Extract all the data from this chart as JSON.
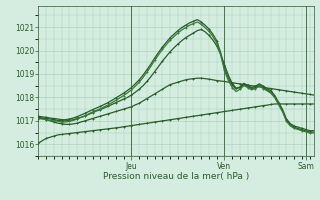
{
  "background_color": "#d4ede0",
  "grid_color": "#a8ccb8",
  "line_color_dark": "#2a5c2a",
  "line_color_mid": "#3a7a3a",
  "xlabel": "Pression niveau de la mer( hPa )",
  "day_labels": [
    "Jeu",
    "Ven",
    "Sam"
  ],
  "ylim": [
    1015.5,
    1021.9
  ],
  "yticks": [
    1016,
    1017,
    1018,
    1019,
    1020,
    1021
  ],
  "figsize": [
    3.2,
    2.0
  ],
  "dpi": 100,
  "series": {
    "s1_x": [
      0,
      1,
      2,
      3,
      4,
      5,
      6,
      7,
      8,
      9,
      10,
      11,
      12,
      13,
      14,
      15,
      16,
      17,
      18,
      19,
      20,
      21,
      22,
      23,
      24,
      25,
      26,
      27,
      28,
      29,
      30,
      31,
      32,
      33,
      34,
      35,
      36,
      37,
      38,
      39,
      40,
      41,
      42,
      43,
      44,
      45,
      46,
      47,
      48,
      49,
      50,
      51,
      52,
      53,
      54,
      55,
      56,
      57,
      58,
      59,
      60,
      61,
      62,
      63,
      64,
      65,
      66,
      67,
      68,
      69,
      70,
      71
    ],
    "s1_y": [
      1016.05,
      1016.15,
      1016.25,
      1016.3,
      1016.35,
      1016.4,
      1016.42,
      1016.44,
      1016.46,
      1016.48,
      1016.5,
      1016.52,
      1016.54,
      1016.56,
      1016.58,
      1016.6,
      1016.62,
      1016.64,
      1016.66,
      1016.68,
      1016.7,
      1016.72,
      1016.75,
      1016.77,
      1016.8,
      1016.82,
      1016.85,
      1016.87,
      1016.9,
      1016.92,
      1016.95,
      1016.97,
      1017.0,
      1017.02,
      1017.05,
      1017.07,
      1017.1,
      1017.12,
      1017.15,
      1017.17,
      1017.2,
      1017.22,
      1017.25,
      1017.27,
      1017.3,
      1017.32,
      1017.35,
      1017.37,
      1017.4,
      1017.42,
      1017.45,
      1017.47,
      1017.5,
      1017.52,
      1017.55,
      1017.57,
      1017.6,
      1017.62,
      1017.65,
      1017.67,
      1017.7,
      1017.72,
      1017.72,
      1017.72,
      1017.72,
      1017.72,
      1017.72,
      1017.72,
      1017.72,
      1017.72,
      1017.72,
      1017.72
    ],
    "s2_x": [
      0,
      1,
      2,
      3,
      4,
      5,
      6,
      7,
      8,
      9,
      10,
      11,
      12,
      13,
      14,
      15,
      16,
      17,
      18,
      19,
      20,
      21,
      22,
      23,
      24,
      25,
      26,
      27,
      28,
      29,
      30,
      31,
      32,
      33,
      34,
      35,
      36,
      37,
      38,
      39,
      40,
      41,
      42,
      43,
      44,
      45,
      46,
      47,
      48,
      49,
      50,
      51,
      52,
      53,
      54,
      55,
      56,
      57,
      58,
      59,
      60,
      61,
      62,
      63,
      64,
      65,
      66,
      67,
      68,
      69,
      70,
      71
    ],
    "s2_y": [
      1017.1,
      1017.1,
      1017.05,
      1017.0,
      1016.95,
      1016.9,
      1016.88,
      1016.85,
      1016.85,
      1016.87,
      1016.9,
      1016.95,
      1017.0,
      1017.05,
      1017.1,
      1017.15,
      1017.2,
      1017.25,
      1017.3,
      1017.35,
      1017.4,
      1017.45,
      1017.5,
      1017.55,
      1017.6,
      1017.68,
      1017.75,
      1017.85,
      1017.95,
      1018.05,
      1018.15,
      1018.25,
      1018.35,
      1018.45,
      1018.55,
      1018.6,
      1018.65,
      1018.7,
      1018.75,
      1018.78,
      1018.8,
      1018.82,
      1018.82,
      1018.8,
      1018.78,
      1018.75,
      1018.72,
      1018.7,
      1018.68,
      1018.65,
      1018.63,
      1018.6,
      1018.58,
      1018.55,
      1018.52,
      1018.5,
      1018.48,
      1018.45,
      1018.43,
      1018.4,
      1018.38,
      1018.35,
      1018.33,
      1018.3,
      1018.28,
      1018.25,
      1018.23,
      1018.2,
      1018.18,
      1018.15,
      1018.13,
      1018.1
    ],
    "s3_x": [
      0,
      1,
      2,
      3,
      4,
      5,
      6,
      7,
      8,
      9,
      10,
      11,
      12,
      13,
      14,
      15,
      16,
      17,
      18,
      19,
      20,
      21,
      22,
      23,
      24,
      25,
      26,
      27,
      28,
      29,
      30,
      31,
      32,
      33,
      34,
      35,
      36,
      37,
      38,
      39,
      40,
      41,
      42,
      43,
      44,
      45,
      46,
      47,
      48,
      49,
      50,
      51,
      52,
      53,
      54,
      55,
      56,
      57,
      58,
      59,
      60,
      61,
      62,
      63,
      64,
      65,
      66,
      67,
      68,
      69,
      70,
      71
    ],
    "s3_y": [
      1017.15,
      1017.12,
      1017.1,
      1017.08,
      1017.05,
      1017.02,
      1017.0,
      1017.0,
      1017.02,
      1017.05,
      1017.1,
      1017.15,
      1017.2,
      1017.28,
      1017.35,
      1017.42,
      1017.48,
      1017.55,
      1017.62,
      1017.7,
      1017.78,
      1017.85,
      1017.93,
      1018.0,
      1018.1,
      1018.22,
      1018.35,
      1018.5,
      1018.68,
      1018.88,
      1019.1,
      1019.32,
      1019.55,
      1019.75,
      1019.95,
      1020.12,
      1020.28,
      1020.42,
      1020.55,
      1020.65,
      1020.75,
      1020.85,
      1020.9,
      1020.8,
      1020.65,
      1020.45,
      1020.2,
      1019.85,
      1019.4,
      1018.95,
      1018.6,
      1018.4,
      1018.42,
      1018.55,
      1018.48,
      1018.38,
      1018.42,
      1018.52,
      1018.42,
      1018.32,
      1018.22,
      1018.02,
      1017.72,
      1017.42,
      1017.02,
      1016.82,
      1016.72,
      1016.67,
      1016.62,
      1016.57,
      1016.52,
      1016.52
    ],
    "s4_x": [
      0,
      1,
      2,
      3,
      4,
      5,
      6,
      7,
      8,
      9,
      10,
      11,
      12,
      13,
      14,
      15,
      16,
      17,
      18,
      19,
      20,
      21,
      22,
      23,
      24,
      25,
      26,
      27,
      28,
      29,
      30,
      31,
      32,
      33,
      34,
      35,
      36,
      37,
      38,
      39,
      40,
      41,
      42,
      43,
      44,
      45,
      46,
      47,
      48,
      49,
      50,
      51,
      52,
      53,
      54,
      55,
      56,
      57,
      58,
      59,
      60,
      61,
      62,
      63,
      64,
      65,
      66,
      67,
      68,
      69,
      70,
      71
    ],
    "s4_y": [
      1017.2,
      1017.17,
      1017.15,
      1017.12,
      1017.1,
      1017.08,
      1017.05,
      1017.05,
      1017.08,
      1017.12,
      1017.18,
      1017.25,
      1017.32,
      1017.4,
      1017.48,
      1017.55,
      1017.62,
      1017.7,
      1017.78,
      1017.88,
      1017.98,
      1018.08,
      1018.18,
      1018.3,
      1018.42,
      1018.58,
      1018.75,
      1018.95,
      1019.18,
      1019.42,
      1019.68,
      1019.92,
      1020.15,
      1020.35,
      1020.55,
      1020.7,
      1020.85,
      1020.98,
      1021.08,
      1021.18,
      1021.25,
      1021.32,
      1021.22,
      1021.08,
      1020.92,
      1020.7,
      1020.42,
      1019.92,
      1019.25,
      1018.82,
      1018.52,
      1018.35,
      1018.45,
      1018.6,
      1018.52,
      1018.42,
      1018.48,
      1018.58,
      1018.48,
      1018.38,
      1018.28,
      1018.08,
      1017.78,
      1017.48,
      1017.08,
      1016.88,
      1016.78,
      1016.73,
      1016.68,
      1016.63,
      1016.58,
      1016.58
    ],
    "s5_x": [
      0,
      1,
      2,
      3,
      4,
      5,
      6,
      7,
      8,
      9,
      10,
      11,
      12,
      13,
      14,
      15,
      16,
      17,
      18,
      19,
      20,
      21,
      22,
      23,
      24,
      25,
      26,
      27,
      28,
      29,
      30,
      31,
      32,
      33,
      34,
      35,
      36,
      37,
      38,
      39,
      40,
      41,
      42,
      43,
      44,
      45,
      46,
      47,
      48,
      49,
      50,
      51,
      52,
      53,
      54,
      55,
      56,
      57,
      58,
      59,
      60,
      61,
      62,
      63,
      64,
      65,
      66,
      67,
      68,
      69,
      70,
      71
    ],
    "s5_y": [
      1017.1,
      1017.08,
      1017.05,
      1017.02,
      1017.0,
      1016.98,
      1016.95,
      1016.95,
      1016.98,
      1017.02,
      1017.08,
      1017.15,
      1017.22,
      1017.3,
      1017.38,
      1017.45,
      1017.52,
      1017.6,
      1017.68,
      1017.78,
      1017.88,
      1017.98,
      1018.08,
      1018.2,
      1018.32,
      1018.48,
      1018.65,
      1018.85,
      1019.08,
      1019.32,
      1019.58,
      1019.82,
      1020.05,
      1020.25,
      1020.45,
      1020.6,
      1020.75,
      1020.88,
      1020.98,
      1021.08,
      1021.15,
      1021.22,
      1021.12,
      1020.98,
      1020.82,
      1020.6,
      1020.32,
      1019.82,
      1019.15,
      1018.72,
      1018.42,
      1018.25,
      1018.35,
      1018.5,
      1018.42,
      1018.32,
      1018.38,
      1018.48,
      1018.38,
      1018.28,
      1018.18,
      1017.98,
      1017.68,
      1017.38,
      1016.98,
      1016.78,
      1016.68,
      1016.63,
      1016.58,
      1016.53,
      1016.48,
      1016.48
    ]
  }
}
